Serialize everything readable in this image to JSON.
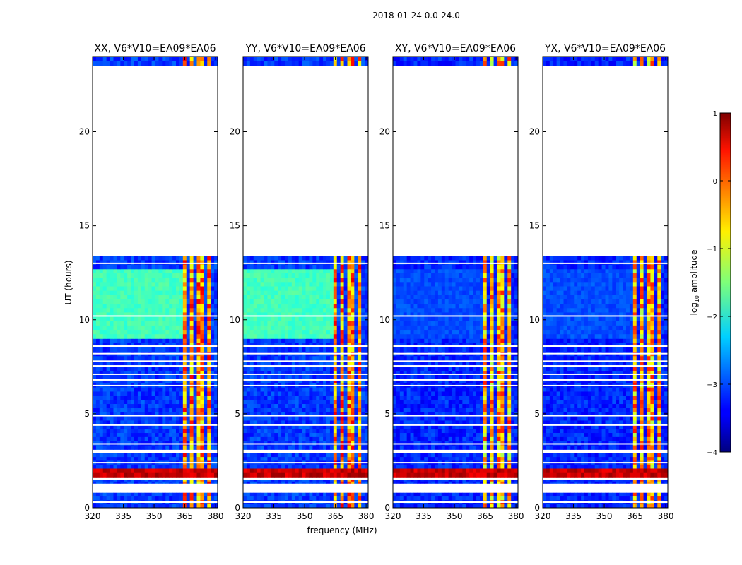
{
  "chart_data": {
    "type": "heatmap",
    "title": "2018-01-24 0.0-24.0",
    "ylabel": "UT (hours)",
    "xlabel": "frequency (MHz)",
    "xlim": [
      320,
      381
    ],
    "ylim": [
      0,
      24
    ],
    "xticks": [
      320,
      335,
      350,
      365,
      380
    ],
    "yticks": [
      0,
      5,
      10,
      15,
      20
    ],
    "colormap": "jet",
    "colorbar": {
      "label_prefix": "log",
      "label_sub": "10",
      "label_suffix": " amplitude",
      "range": [
        -4,
        1
      ],
      "ticks": [
        {
          "value": 1,
          "label": "1"
        },
        {
          "value": 0,
          "label": "0"
        },
        {
          "value": -1,
          "label": "−1"
        },
        {
          "value": -2,
          "label": "−2"
        },
        {
          "value": -3,
          "label": "−3"
        },
        {
          "value": -4,
          "label": "−4"
        }
      ]
    },
    "panels": [
      {
        "name": "xx",
        "title": "XX, V6*V10=EA09*EA06",
        "base_level": -3.1,
        "block_level": -1.8,
        "band_level": -0.3
      },
      {
        "name": "yy",
        "title": "YY, V6*V10=EA09*EA06",
        "base_level": -3.1,
        "block_level": -1.8,
        "band_level": -0.3
      },
      {
        "name": "xy",
        "title": "XY, V6*V10=EA09*EA06",
        "base_level": -3.2,
        "block_level": -3.0,
        "band_level": -0.5
      },
      {
        "name": "yx",
        "title": "YX, V6*V10=EA09*EA06",
        "base_level": -3.2,
        "block_level": -3.0,
        "band_level": -0.5
      }
    ],
    "data_segments_hours": [
      {
        "start": 0.0,
        "end": 0.8,
        "level": "base"
      },
      {
        "start": 1.3,
        "end": 1.5,
        "level": "base"
      },
      {
        "start": 1.6,
        "end": 2.1,
        "level": "flare"
      },
      {
        "start": 2.1,
        "end": 2.9,
        "level": "base"
      },
      {
        "start": 3.1,
        "end": 7.5,
        "level": "base"
      },
      {
        "start": 7.6,
        "end": 9.0,
        "level": "base"
      },
      {
        "start": 9.0,
        "end": 12.7,
        "level": "block"
      },
      {
        "start": 12.7,
        "end": 13.4,
        "level": "base"
      },
      {
        "start": 23.5,
        "end": 24.0,
        "level": "base"
      }
    ],
    "gap_lines_hours": [
      0.3,
      2.4,
      3.4,
      4.4,
      4.9,
      6.5,
      6.8,
      7.1,
      7.8,
      8.2,
      8.6,
      10.2,
      13.0
    ],
    "rfi_subbands_mhz": [
      [
        364,
        366
      ],
      [
        367,
        369
      ],
      [
        370,
        372
      ],
      [
        373,
        375
      ],
      [
        376,
        378
      ]
    ]
  }
}
